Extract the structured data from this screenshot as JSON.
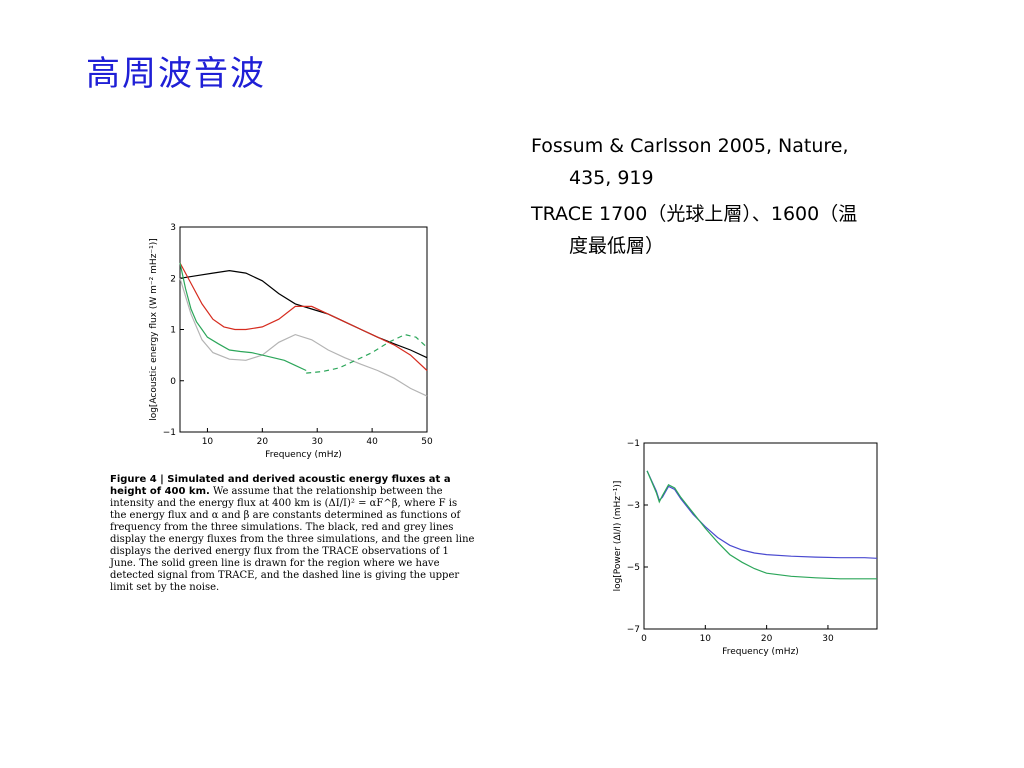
{
  "slide": {
    "title": "高周波音波",
    "refs": [
      {
        "line1": "Fossum & Carlsson 2005, Nature,",
        "line2": "435, 919"
      },
      {
        "line1": "TRACE 1700（光球上層）、1600（温",
        "line2": "度最低層）"
      }
    ]
  },
  "caption": {
    "head": "Figure 4 | Simulated and derived acoustic energy fluxes at a height of 400 km.",
    "body": "We assume that the relationship between the intensity and the energy flux at 400 km is (ΔI/I)² = αF^β, where F is the energy flux and α and β are constants determined as functions of frequency from the three simulations. The black, red and grey lines display the energy fluxes from the three simulations, and the green line displays the derived energy flux from the TRACE observations of 1 June. The solid green line is drawn for the region where we have detected signal from TRACE, and the dashed line is giving the upper limit set by the noise."
  },
  "chart_data": [
    {
      "type": "line",
      "xlabel": "Frequency (mHz)",
      "ylabel": "log[Acoustic energy flux (W m⁻² mHz⁻¹)]",
      "xlim": [
        5,
        50
      ],
      "ylim": [
        -1,
        3
      ],
      "xticks": [
        10,
        20,
        30,
        40,
        50
      ],
      "yticks": [
        -1,
        0,
        1,
        2,
        3
      ],
      "grid": false,
      "series": [
        {
          "color": "#000000",
          "style": "solid",
          "x": [
            5,
            8,
            11,
            14,
            17,
            20,
            23,
            26,
            29,
            32,
            35,
            38,
            41,
            44,
            47,
            50
          ],
          "y": [
            2.0,
            2.05,
            2.1,
            2.15,
            2.1,
            1.95,
            1.7,
            1.5,
            1.4,
            1.3,
            1.15,
            1.0,
            0.85,
            0.72,
            0.6,
            0.45
          ]
        },
        {
          "color": "#d62c1f",
          "style": "solid",
          "x": [
            5,
            7,
            9,
            11,
            13,
            15,
            17,
            20,
            23,
            26,
            29,
            32,
            35,
            38,
            41,
            44,
            47,
            50
          ],
          "y": [
            2.3,
            1.9,
            1.5,
            1.2,
            1.05,
            1.0,
            1.0,
            1.05,
            1.2,
            1.45,
            1.45,
            1.3,
            1.15,
            1.0,
            0.85,
            0.7,
            0.5,
            0.2
          ]
        },
        {
          "color": "#b4b4b4",
          "style": "solid",
          "x": [
            5,
            7,
            9,
            11,
            14,
            17,
            20,
            23,
            26,
            29,
            32,
            35,
            38,
            41,
            44,
            47,
            50
          ],
          "y": [
            2.0,
            1.3,
            0.8,
            0.55,
            0.42,
            0.4,
            0.5,
            0.75,
            0.9,
            0.8,
            0.6,
            0.45,
            0.32,
            0.2,
            0.05,
            -0.15,
            -0.3
          ]
        },
        {
          "color": "#2ca65a",
          "style": "solid",
          "x": [
            5,
            6,
            7,
            8,
            9,
            10,
            12,
            14,
            16,
            18,
            20,
            22,
            24,
            26,
            28
          ],
          "y": [
            2.3,
            1.8,
            1.4,
            1.15,
            1.0,
            0.85,
            0.72,
            0.6,
            0.57,
            0.55,
            0.5,
            0.45,
            0.4,
            0.3,
            0.2
          ]
        },
        {
          "color": "#2ca65a",
          "style": "dashed",
          "x": [
            28,
            31,
            34,
            37,
            40,
            43,
            46,
            48,
            50
          ],
          "y": [
            0.15,
            0.18,
            0.25,
            0.4,
            0.55,
            0.75,
            0.9,
            0.85,
            0.65
          ]
        }
      ]
    },
    {
      "type": "line",
      "xlabel": "Frequency (mHz)",
      "ylabel": "log[Power (ΔI/I) (mHz⁻¹)]",
      "xlim": [
        0,
        38
      ],
      "ylim": [
        -7,
        -1
      ],
      "xticks": [
        0,
        10,
        20,
        30
      ],
      "yticks": [
        -7,
        -5,
        -3,
        -1
      ],
      "grid": false,
      "series": [
        {
          "color": "#4a4ad0",
          "style": "solid",
          "x": [
            0.5,
            2,
            2.5,
            3,
            4,
            5,
            6,
            8,
            10,
            12,
            14,
            16,
            18,
            20,
            24,
            28,
            32,
            36,
            38
          ],
          "y": [
            -1.9,
            -2.55,
            -2.85,
            -2.75,
            -2.4,
            -2.5,
            -2.8,
            -3.3,
            -3.7,
            -4.05,
            -4.3,
            -4.45,
            -4.55,
            -4.6,
            -4.65,
            -4.68,
            -4.7,
            -4.7,
            -4.72
          ]
        },
        {
          "color": "#2ca65a",
          "style": "solid",
          "x": [
            0.5,
            2,
            2.5,
            3,
            4,
            5,
            6,
            8,
            10,
            12,
            14,
            16,
            18,
            20,
            24,
            28,
            32,
            36,
            38
          ],
          "y": [
            -1.9,
            -2.6,
            -2.9,
            -2.7,
            -2.35,
            -2.45,
            -2.75,
            -3.25,
            -3.75,
            -4.2,
            -4.6,
            -4.85,
            -5.05,
            -5.2,
            -5.3,
            -5.35,
            -5.38,
            -5.38,
            -5.38
          ]
        }
      ]
    }
  ]
}
